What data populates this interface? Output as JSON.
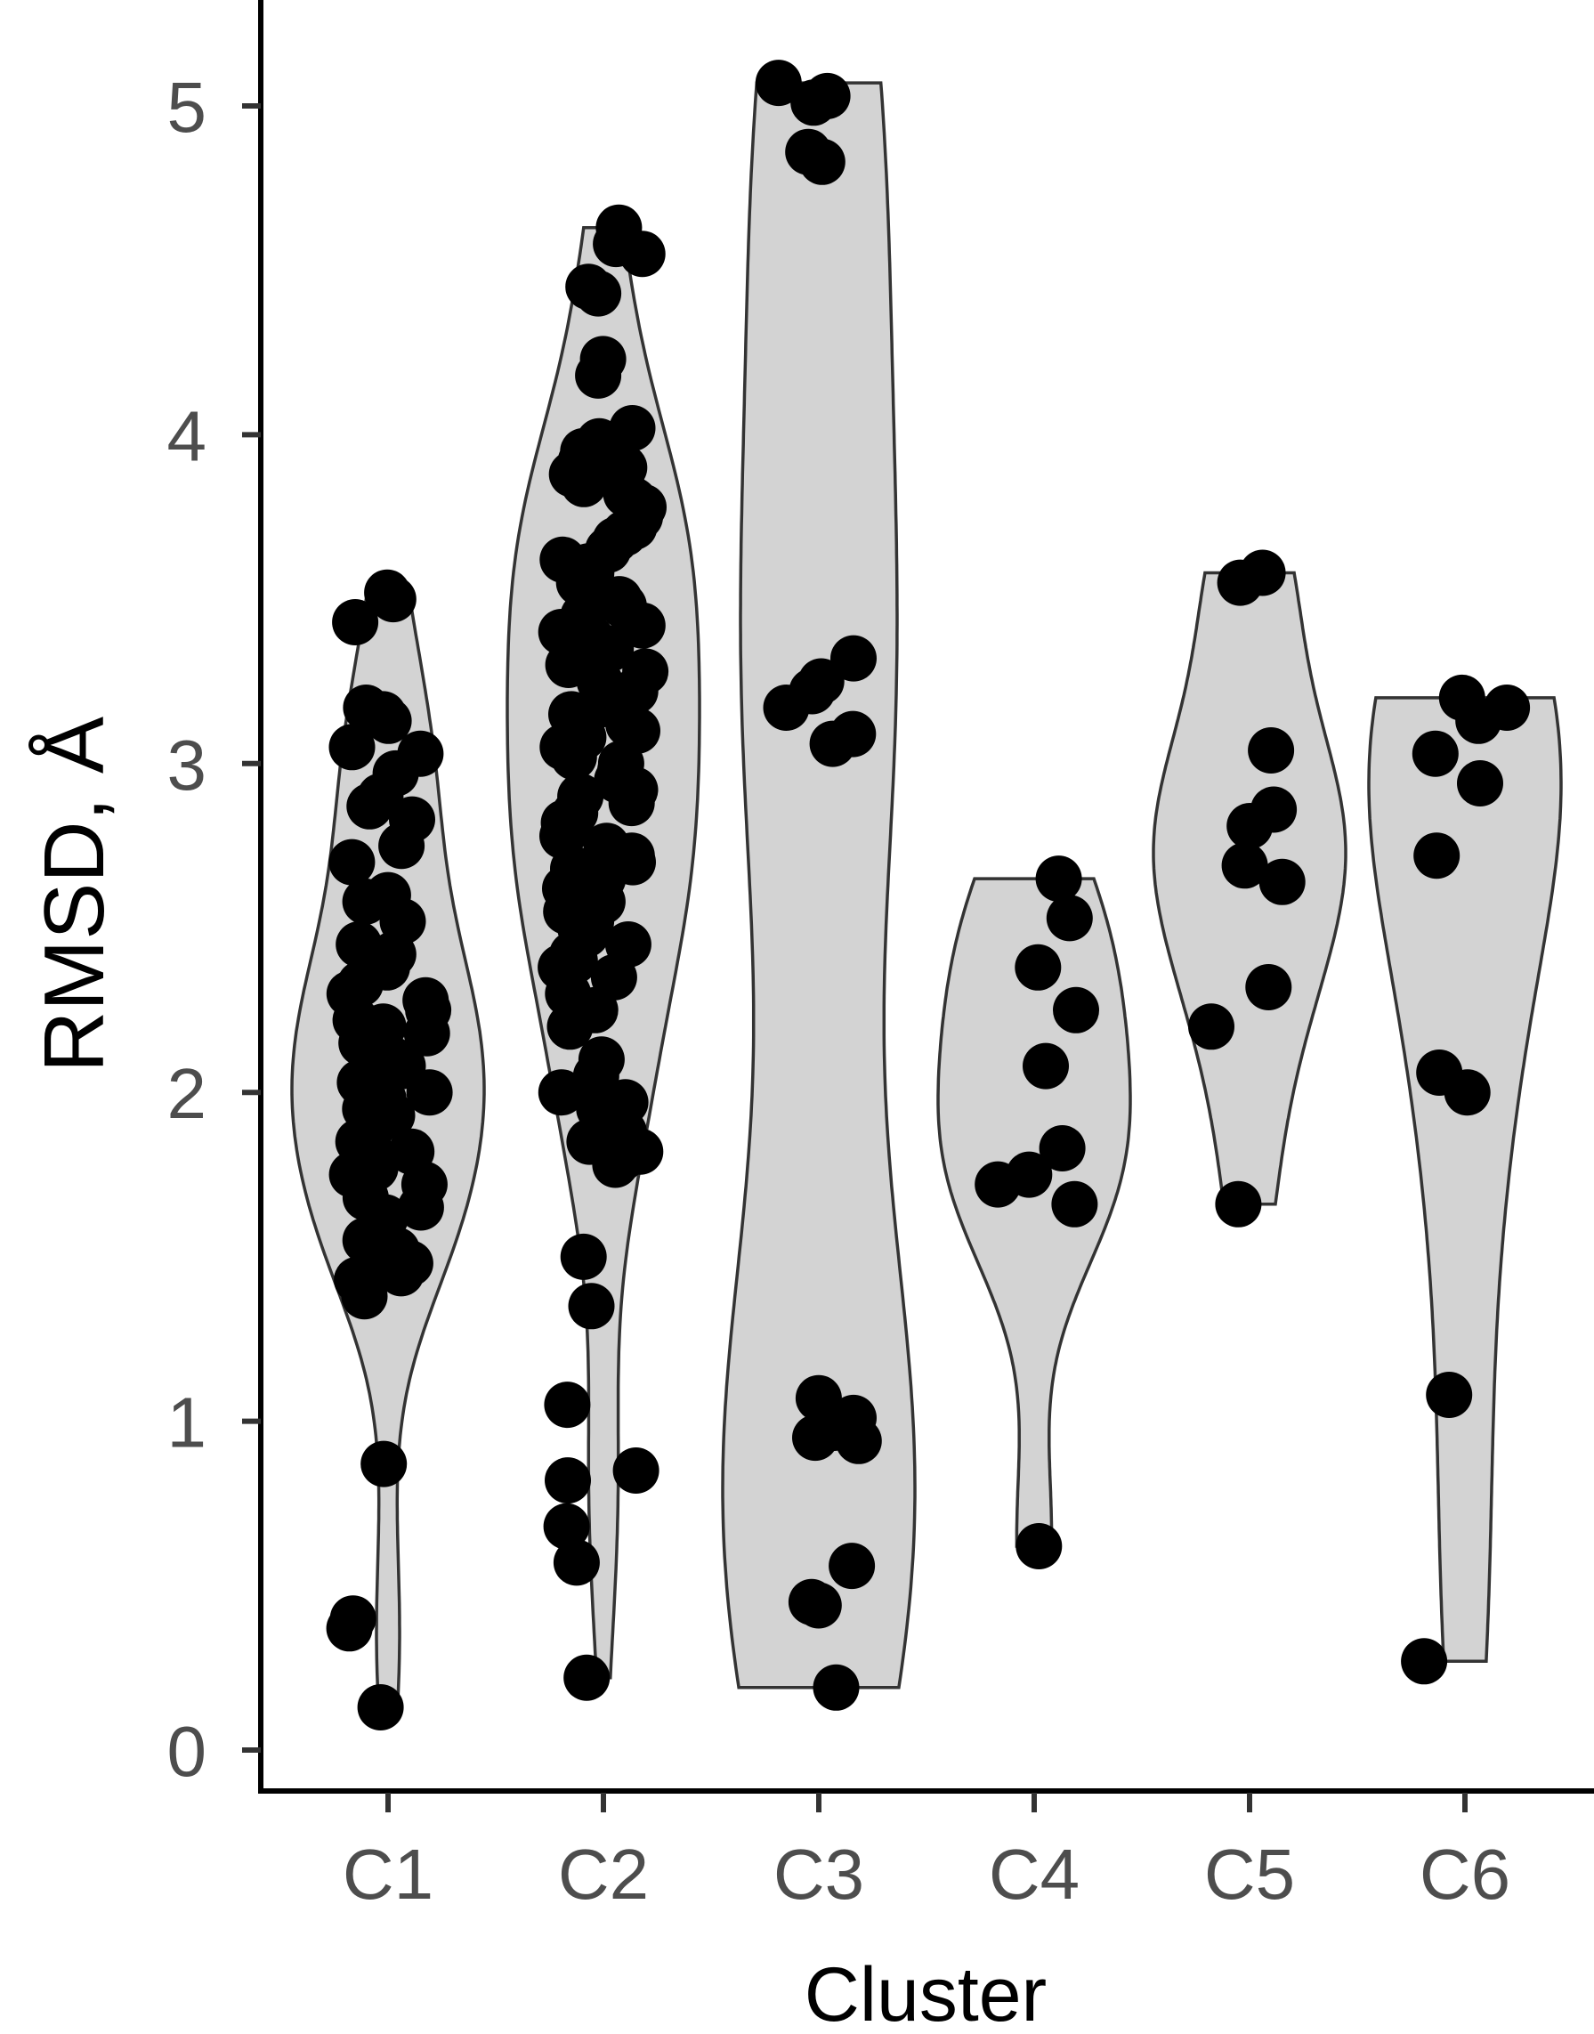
{
  "chart_data": {
    "type": "violin",
    "title": "",
    "xlabel": "Cluster",
    "ylabel": "RMSD, Å",
    "ylim": [
      -0.1,
      5.3
    ],
    "yticks": [
      0,
      1,
      2,
      3,
      4,
      5
    ],
    "categories": [
      "C1",
      "C2",
      "C3",
      "C4",
      "C5",
      "C6"
    ],
    "grid": false,
    "legend": "none",
    "colors": {
      "violin_fill": "#d3d3d3",
      "violin_stroke": "#333333",
      "point": "#000000",
      "axis": "#000000"
    },
    "points": [
      [
        3.52,
        3.5,
        3.43,
        3.17,
        3.15,
        3.13,
        3.05,
        3.03,
        2.97,
        2.9,
        2.87,
        2.83,
        2.75,
        2.7,
        2.6,
        2.58,
        2.52,
        2.45,
        2.42,
        2.38,
        2.33,
        2.3,
        2.28,
        2.25,
        2.22,
        2.2,
        2.18,
        2.15,
        2.12,
        2.1,
        2.08,
        2.05,
        2.03,
        2.0,
        1.98,
        1.95,
        1.93,
        1.9,
        1.85,
        1.82,
        1.8,
        1.77,
        1.75,
        1.72,
        1.68,
        1.65,
        1.62,
        1.55,
        1.52,
        1.5,
        1.48,
        1.45,
        1.43,
        1.38,
        0.87,
        0.4,
        0.37,
        0.13
      ],
      [
        4.63,
        4.58,
        4.55,
        4.45,
        4.43,
        4.23,
        4.18,
        4.02,
        3.98,
        3.97,
        3.95,
        3.92,
        3.9,
        3.88,
        3.85,
        3.82,
        3.8,
        3.78,
        3.75,
        3.72,
        3.7,
        3.68,
        3.65,
        3.62,
        3.6,
        3.58,
        3.55,
        3.53,
        3.5,
        3.48,
        3.45,
        3.42,
        3.4,
        3.38,
        3.35,
        3.32,
        3.3,
        3.28,
        3.25,
        3.22,
        3.2,
        3.18,
        3.15,
        3.12,
        3.1,
        3.08,
        3.05,
        3.02,
        3.0,
        2.98,
        2.95,
        2.92,
        2.9,
        2.88,
        2.85,
        2.82,
        2.8,
        2.78,
        2.75,
        2.72,
        2.7,
        2.68,
        2.65,
        2.62,
        2.6,
        2.58,
        2.55,
        2.52,
        2.5,
        2.48,
        2.45,
        2.42,
        2.4,
        2.38,
        2.35,
        2.3,
        2.25,
        2.2,
        2.1,
        2.05,
        2.0,
        1.97,
        1.95,
        1.88,
        1.85,
        1.82,
        1.8,
        1.78,
        1.5,
        1.35,
        1.05,
        0.85,
        0.82,
        0.68,
        0.57,
        0.22
      ],
      [
        5.07,
        5.03,
        5.01,
        4.86,
        4.83,
        3.32,
        3.25,
        3.22,
        3.17,
        3.09,
        3.06,
        1.07,
        1.01,
        0.98,
        0.95,
        0.94,
        0.56,
        0.45,
        0.44,
        0.19
      ],
      [
        2.65,
        2.53,
        2.38,
        2.25,
        2.08,
        1.83,
        1.75,
        1.72,
        1.66,
        0.62
      ],
      [
        3.58,
        3.55,
        3.04,
        2.86,
        2.81,
        2.69,
        2.64,
        2.32,
        2.2,
        1.66
      ],
      [
        3.2,
        3.17,
        3.13,
        3.03,
        2.94,
        2.72,
        2.06,
        2.0,
        1.08,
        0.27
      ]
    ]
  }
}
